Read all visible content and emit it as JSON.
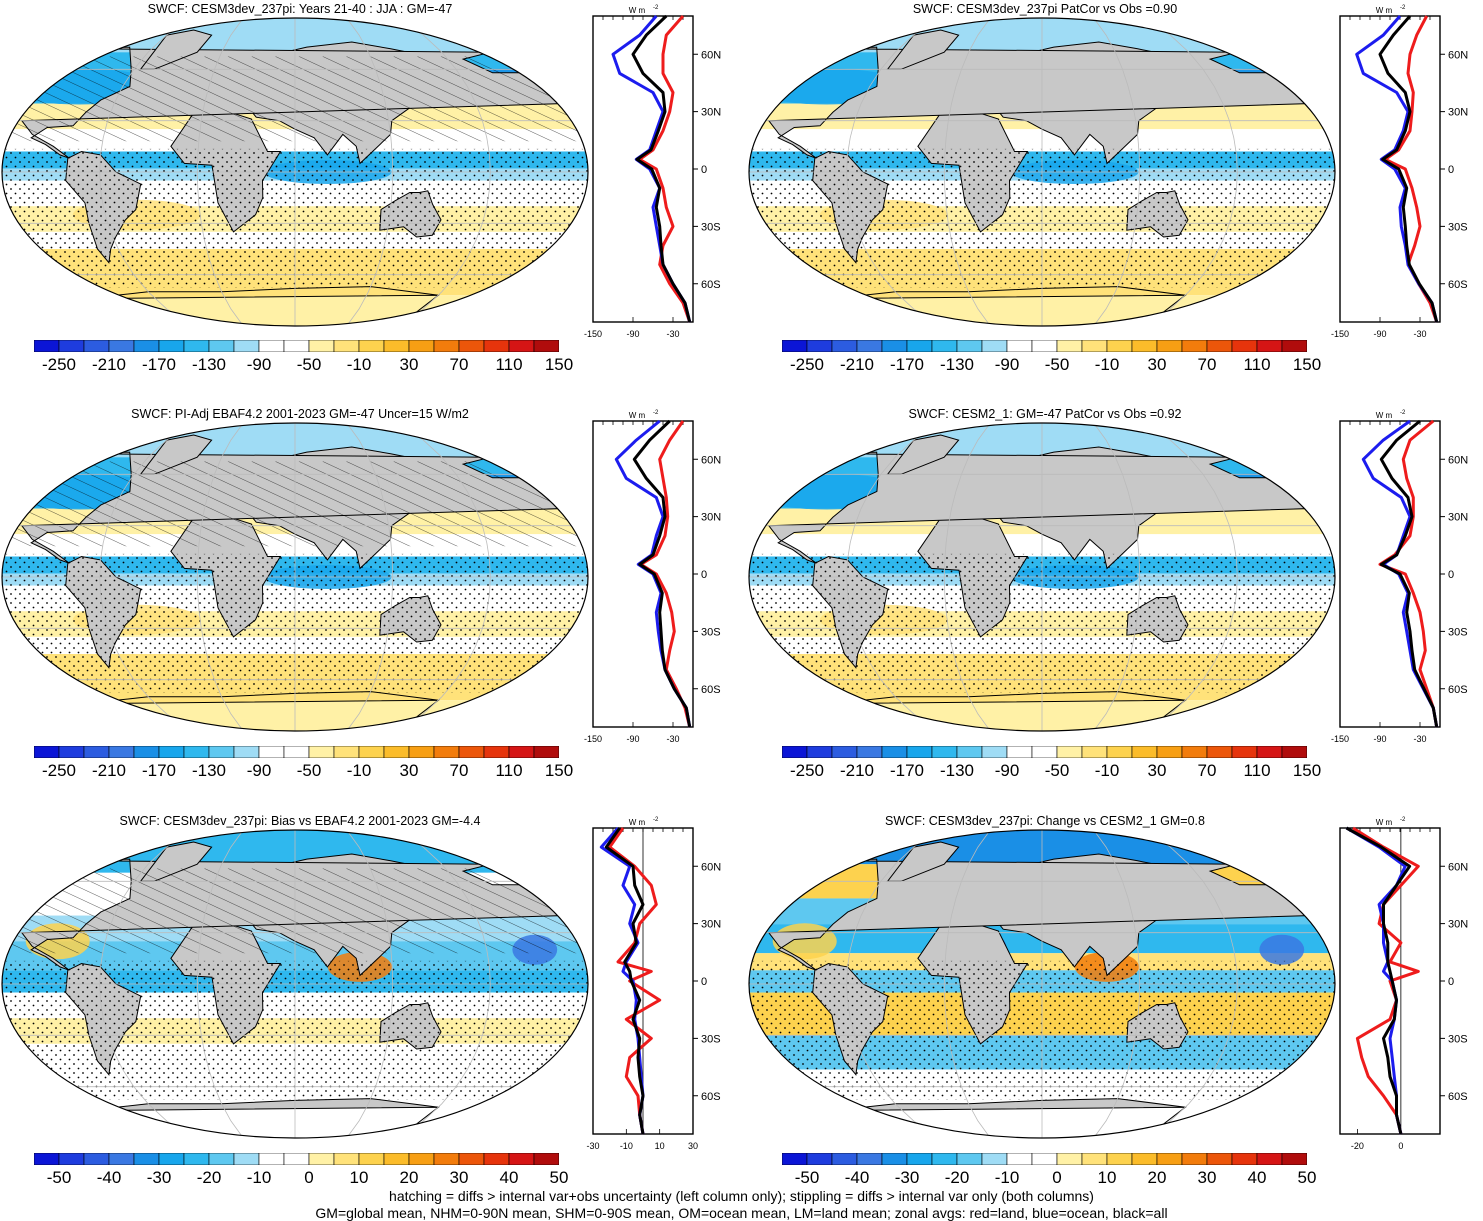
{
  "colors": {
    "land": "#c8c8c8",
    "line_land": "#ee1c1c",
    "line_ocean": "#1c1cee",
    "line_all": "#000000",
    "palette": [
      "#0b15d6",
      "#1e3cde",
      "#2c5ce0",
      "#3a78e2",
      "#1a8fe6",
      "#18a6ec",
      "#2fb8ee",
      "#5ec8f0",
      "#9fdcf5",
      "#ffffff",
      "#ffffff",
      "#fff1a6",
      "#ffe27a",
      "#fdd24e",
      "#fbbc2a",
      "#f79f14",
      "#f27c0c",
      "#ec560a",
      "#e6340c",
      "#d51515",
      "#b00c0c"
    ]
  },
  "footer": {
    "line1": "hatching = diffs > internal var+obs uncertainty (left column only); stippling = diffs > internal var only (both columns)",
    "line2": "GM=global mean, NHM=0-90N mean, SHM=0-90S mean, OM=ocean mean, LM=land mean; zonal avgs: red=land, blue=ocean, black=all"
  },
  "panels": [
    {
      "title": "SWCF: CESM3dev_237pi: Years 21-40 : JJA : GM=-47",
      "colorbar_labels": [
        "-250",
        "-210",
        "-170",
        "-130",
        "-90",
        "-50",
        "-10",
        "30",
        "70",
        "110",
        "150"
      ],
      "zonal_unit": "W m",
      "zonal_unit_sup": "-2",
      "zonal_xticks": [
        "-150",
        "-90",
        "-30"
      ],
      "zonal_lat_labels": [
        "60N",
        "30N",
        "0",
        "30S",
        "60S"
      ],
      "hatched": true
    },
    {
      "title": "SWCF: CESM3dev_237pi PatCor vs Obs =0.90",
      "colorbar_labels": [
        "-250",
        "-210",
        "-170",
        "-130",
        "-90",
        "-50",
        "-10",
        "30",
        "70",
        "110",
        "150"
      ],
      "zonal_unit": "W m",
      "zonal_unit_sup": "-2",
      "zonal_xticks": [
        "-150",
        "-90",
        "-30"
      ],
      "zonal_lat_labels": [
        "60N",
        "30N",
        "0",
        "30S",
        "60S"
      ],
      "hatched": false
    },
    {
      "title": "SWCF: PI-Adj EBAF4.2 2001-2023 GM=-47 Uncer=15 W/m2",
      "colorbar_labels": [
        "-250",
        "-210",
        "-170",
        "-130",
        "-90",
        "-50",
        "-10",
        "30",
        "70",
        "110",
        "150"
      ],
      "zonal_unit": "W m",
      "zonal_unit_sup": "-2",
      "zonal_xticks": [
        "-150",
        "-90",
        "-30"
      ],
      "zonal_lat_labels": [
        "60N",
        "30N",
        "0",
        "30S",
        "60S"
      ],
      "hatched": true
    },
    {
      "title": "SWCF: CESM2_1: GM=-47 PatCor vs Obs =0.92",
      "colorbar_labels": [
        "-250",
        "-210",
        "-170",
        "-130",
        "-90",
        "-50",
        "-10",
        "30",
        "70",
        "110",
        "150"
      ],
      "zonal_unit": "W m",
      "zonal_unit_sup": "-2",
      "zonal_xticks": [
        "-150",
        "-90",
        "-30"
      ],
      "zonal_lat_labels": [
        "60N",
        "30N",
        "0",
        "30S",
        "60S"
      ],
      "hatched": false
    },
    {
      "title": "SWCF: CESM3dev_237pi: Bias vs EBAF4.2 2001-2023 GM=-4.4",
      "colorbar_labels": [
        "-50",
        "-40",
        "-30",
        "-20",
        "-10",
        "0",
        "10",
        "20",
        "30",
        "40",
        "50"
      ],
      "zonal_unit": "W m",
      "zonal_unit_sup": "-2",
      "zonal_xticks": [
        "-30",
        "-10",
        "10",
        "30"
      ],
      "zonal_lat_labels": [
        "60N",
        "30N",
        "0",
        "30S",
        "60S"
      ],
      "hatched": true
    },
    {
      "title": "SWCF: CESM3dev_237pi: Change vs CESM2_1 GM=0.8",
      "colorbar_labels": [
        "-50",
        "-40",
        "-30",
        "-20",
        "-10",
        "0",
        "10",
        "20",
        "30",
        "40",
        "50"
      ],
      "zonal_unit": "W m",
      "zonal_unit_sup": "-2",
      "zonal_xticks": [
        "-20",
        "0"
      ],
      "zonal_lat_labels": [
        "60N",
        "30N",
        "0",
        "30S",
        "60S"
      ],
      "hatched": false
    }
  ],
  "chart_data": [
    {
      "type": "line",
      "title": "SWCF: CESM3dev_237pi: Years 21-40 : JJA : GM=-47",
      "xlim": [
        -150,
        0
      ],
      "ylabel": "",
      "lat": [
        80,
        70,
        60,
        50,
        40,
        30,
        20,
        10,
        5,
        0,
        -10,
        -20,
        -30,
        -40,
        -50,
        -60,
        -70,
        -80
      ],
      "series": [
        {
          "color": "land",
          "values": [
            -15,
            -40,
            -45,
            -45,
            -30,
            -35,
            -45,
            -60,
            -80,
            -55,
            -45,
            -40,
            -30,
            -45,
            -50,
            -35,
            -15,
            -5
          ]
        },
        {
          "color": "ocean",
          "values": [
            -55,
            -80,
            -120,
            -110,
            -60,
            -45,
            -55,
            -65,
            -85,
            -65,
            -50,
            -60,
            -55,
            -50,
            -45,
            -30,
            -12,
            -5
          ]
        },
        {
          "color": "all",
          "values": [
            -40,
            -70,
            -90,
            -75,
            -45,
            -42,
            -52,
            -63,
            -84,
            -62,
            -50,
            -55,
            -50,
            -48,
            -45,
            -30,
            -12,
            -5
          ]
        }
      ]
    },
    {
      "type": "line",
      "title": "SWCF: CESM3dev_237pi PatCor vs Obs =0.90",
      "xlim": [
        -150,
        0
      ],
      "lat": [
        80,
        70,
        60,
        50,
        40,
        30,
        20,
        10,
        5,
        0,
        -10,
        -20,
        -30,
        -40,
        -50,
        -60,
        -70,
        -80
      ],
      "series": [
        {
          "color": "land",
          "values": [
            -20,
            -35,
            -45,
            -48,
            -40,
            -42,
            -45,
            -62,
            -82,
            -52,
            -42,
            -35,
            -30,
            -38,
            -48,
            -32,
            -15,
            -5
          ]
        },
        {
          "color": "ocean",
          "values": [
            -60,
            -85,
            -125,
            -115,
            -65,
            -48,
            -55,
            -68,
            -88,
            -68,
            -52,
            -60,
            -58,
            -52,
            -48,
            -32,
            -12,
            -5
          ]
        },
        {
          "color": "all",
          "values": [
            -45,
            -70,
            -90,
            -78,
            -52,
            -45,
            -52,
            -65,
            -86,
            -62,
            -50,
            -55,
            -52,
            -50,
            -46,
            -31,
            -12,
            -5
          ]
        }
      ]
    },
    {
      "type": "line",
      "title": "SWCF: PI-Adj EBAF4.2 2001-2023 GM=-47 Uncer=15 W/m2",
      "xlim": [
        -150,
        0
      ],
      "lat": [
        80,
        70,
        60,
        50,
        40,
        30,
        20,
        10,
        5,
        0,
        -10,
        -20,
        -30,
        -40,
        -50,
        -60,
        -70,
        -80
      ],
      "series": [
        {
          "color": "land",
          "values": [
            -15,
            -35,
            -50,
            -45,
            -40,
            -38,
            -42,
            -55,
            -78,
            -55,
            -40,
            -32,
            -28,
            -35,
            -40,
            -25,
            -12,
            -5
          ]
        },
        {
          "color": "ocean",
          "values": [
            -50,
            -85,
            -115,
            -100,
            -55,
            -45,
            -55,
            -62,
            -82,
            -60,
            -48,
            -55,
            -52,
            -48,
            -42,
            -28,
            -10,
            -5
          ]
        },
        {
          "color": "all",
          "values": [
            -35,
            -65,
            -88,
            -70,
            -45,
            -42,
            -50,
            -60,
            -80,
            -58,
            -46,
            -50,
            -48,
            -46,
            -42,
            -28,
            -10,
            -5
          ]
        }
      ]
    },
    {
      "type": "line",
      "title": "SWCF: CESM2_1: GM=-47 PatCor vs Obs =0.92",
      "xlim": [
        -150,
        0
      ],
      "lat": [
        80,
        70,
        60,
        50,
        40,
        30,
        20,
        10,
        5,
        0,
        -10,
        -20,
        -30,
        -40,
        -50,
        -60,
        -70,
        -80
      ],
      "series": [
        {
          "color": "land",
          "values": [
            -10,
            -45,
            -55,
            -50,
            -40,
            -40,
            -45,
            -68,
            -90,
            -52,
            -40,
            -30,
            -25,
            -22,
            -30,
            -20,
            -10,
            -5
          ]
        },
        {
          "color": "ocean",
          "values": [
            -45,
            -85,
            -115,
            -100,
            -58,
            -45,
            -55,
            -65,
            -85,
            -62,
            -48,
            -55,
            -50,
            -45,
            -40,
            -25,
            -10,
            -5
          ]
        },
        {
          "color": "all",
          "values": [
            -30,
            -65,
            -88,
            -72,
            -48,
            -42,
            -52,
            -65,
            -88,
            -60,
            -46,
            -50,
            -45,
            -42,
            -38,
            -24,
            -10,
            -5
          ]
        }
      ]
    },
    {
      "type": "line",
      "title": "SWCF: CESM3dev_237pi: Bias vs EBAF4.2 2001-2023 GM=-4.4",
      "xlim": [
        -30,
        30
      ],
      "lat": [
        80,
        70,
        60,
        50,
        40,
        30,
        20,
        10,
        5,
        0,
        -10,
        -20,
        -30,
        -40,
        -50,
        -60,
        -70,
        -80
      ],
      "series": [
        {
          "color": "land",
          "values": [
            -12,
            -20,
            -5,
            5,
            8,
            -2,
            -5,
            -15,
            5,
            -8,
            10,
            -10,
            5,
            -8,
            -10,
            -3,
            -2,
            0
          ]
        },
        {
          "color": "ocean",
          "values": [
            -15,
            -25,
            -8,
            -12,
            -5,
            -8,
            -3,
            -10,
            -12,
            -6,
            -4,
            -5,
            -3,
            -2,
            -1,
            0,
            -2,
            0
          ]
        },
        {
          "color": "all",
          "values": [
            -14,
            -22,
            -6,
            -5,
            0,
            -6,
            -4,
            -11,
            -8,
            -7,
            -2,
            -6,
            -2,
            -3,
            -2,
            0,
            -2,
            0
          ]
        }
      ]
    },
    {
      "type": "line",
      "title": "SWCF: CESM3dev_237pi: Change vs CESM2_1 GM=0.8",
      "xlim": [
        -28,
        18
      ],
      "lat": [
        80,
        70,
        60,
        50,
        40,
        30,
        20,
        10,
        5,
        0,
        -10,
        -20,
        -30,
        -40,
        -50,
        -60,
        -70,
        -80
      ],
      "series": [
        {
          "color": "land",
          "values": [
            -22,
            -8,
            8,
            0,
            -8,
            -10,
            0,
            -5,
            8,
            -5,
            -2,
            -5,
            -20,
            -18,
            -15,
            -8,
            -2,
            0
          ]
        },
        {
          "color": "ocean",
          "values": [
            -25,
            -10,
            2,
            -2,
            -10,
            -8,
            -8,
            -6,
            -8,
            -4,
            -2,
            -3,
            -5,
            -4,
            -3,
            -2,
            -2,
            0
          ]
        },
        {
          "color": "all",
          "values": [
            -25,
            -9,
            4,
            -2,
            -8,
            -8,
            -6,
            -6,
            -5,
            -4,
            -2,
            -3,
            -8,
            -6,
            -5,
            -2,
            -2,
            0
          ]
        }
      ]
    }
  ]
}
